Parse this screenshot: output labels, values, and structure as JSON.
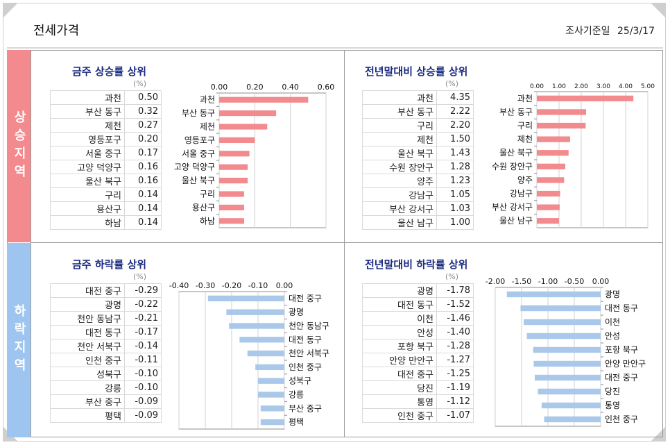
{
  "header": {
    "title": "전세가격",
    "survey_label": "조사기준일",
    "survey_date": "25/3/17"
  },
  "sections": {
    "rise": "상승지역",
    "fall": "하락지역"
  },
  "unit_label": "(%)",
  "colors": {
    "rise_bar": "#f28a8e",
    "fall_bar": "#a9c8ea",
    "rise_side": "#f28a8e",
    "fall_side": "#9ec5f0",
    "title": "#1a2a80"
  },
  "chart_data": [
    {
      "type": "bar",
      "title": "금주 상승률 상위",
      "categories": [
        "과천",
        "부산 동구",
        "제천",
        "영등포구",
        "서울 중구",
        "고양 덕양구",
        "울산 북구",
        "구리",
        "용산구",
        "하남"
      ],
      "values": [
        0.5,
        0.32,
        0.27,
        0.2,
        0.17,
        0.16,
        0.16,
        0.14,
        0.14,
        0.14
      ],
      "value_labels": [
        "0.50",
        "0.32",
        "0.27",
        "0.20",
        "0.17",
        "0.16",
        "0.16",
        "0.14",
        "0.14",
        "0.14"
      ],
      "xlim": [
        0,
        0.6
      ],
      "ticks": [
        "0.00",
        "0.20",
        "0.40",
        "0.60"
      ],
      "orientation": "horizontal"
    },
    {
      "type": "bar",
      "title": "전년말대비 상승률 상위",
      "categories": [
        "과천",
        "부산 동구",
        "구리",
        "제천",
        "울산 북구",
        "수원 장안구",
        "양주",
        "강남구",
        "부산 강서구",
        "울산 남구"
      ],
      "values": [
        4.35,
        2.22,
        2.2,
        1.5,
        1.43,
        1.28,
        1.23,
        1.05,
        1.03,
        1.0
      ],
      "value_labels": [
        "4.35",
        "2.22",
        "2.20",
        "1.50",
        "1.43",
        "1.28",
        "1.23",
        "1.05",
        "1.03",
        "1.00"
      ],
      "xlim": [
        0,
        5.0
      ],
      "ticks": [
        "0.00",
        "1.00",
        "2.00",
        "3.00",
        "4.00",
        "5.00"
      ],
      "orientation": "horizontal"
    },
    {
      "type": "bar",
      "title": "금주 하락률 상위",
      "categories": [
        "대전 중구",
        "광명",
        "천안 동남구",
        "대전 동구",
        "천안 서북구",
        "인천 중구",
        "성북구",
        "강릉",
        "부산 중구",
        "평택"
      ],
      "values": [
        -0.29,
        -0.22,
        -0.21,
        -0.17,
        -0.14,
        -0.11,
        -0.1,
        -0.1,
        -0.09,
        -0.09
      ],
      "value_labels": [
        "-0.29",
        "-0.22",
        "-0.21",
        "-0.17",
        "-0.14",
        "-0.11",
        "-0.10",
        "-0.10",
        "-0.09",
        "-0.09"
      ],
      "xlim": [
        -0.4,
        0.0
      ],
      "ticks": [
        "-0.40",
        "-0.30",
        "-0.20",
        "-0.10",
        "0.00"
      ],
      "orientation": "horizontal"
    },
    {
      "type": "bar",
      "title": "전년말대비 하락률 상위",
      "categories": [
        "광명",
        "대전 동구",
        "이천",
        "안성",
        "포항 북구",
        "안양 만안구",
        "대전 중구",
        "당진",
        "통영",
        "인천 중구"
      ],
      "values": [
        -1.78,
        -1.52,
        -1.46,
        -1.4,
        -1.28,
        -1.27,
        -1.25,
        -1.19,
        -1.12,
        -1.07
      ],
      "value_labels": [
        "-1.78",
        "-1.52",
        "-1.46",
        "-1.40",
        "-1.28",
        "-1.27",
        "-1.25",
        "-1.19",
        "-1.12",
        "-1.07"
      ],
      "xlim": [
        -2.0,
        0.0
      ],
      "ticks": [
        "-2.00",
        "-1.50",
        "-1.00",
        "-0.50",
        "0.00"
      ],
      "orientation": "horizontal"
    }
  ]
}
